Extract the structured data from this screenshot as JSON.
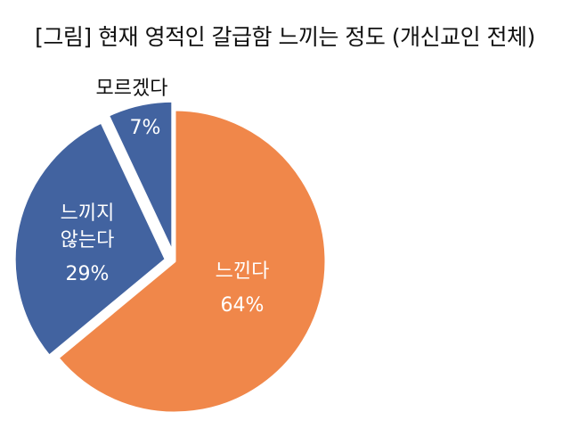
{
  "chart_data": {
    "type": "pie",
    "title": "[그림] 현재 영적인 갈급함 느끼는 정도 (개신교인 전체)",
    "slices": [
      {
        "label_lines": [
          "느낀다"
        ],
        "percent_label": "64%",
        "value": 64,
        "color": "#F0874A",
        "label_color": "#ffffff"
      },
      {
        "label_lines": [
          "느끼지",
          "않는다"
        ],
        "percent_label": "29%",
        "value": 29,
        "color": "#4263A0",
        "label_color": "#ffffff"
      },
      {
        "label_lines": [
          "모르겠다"
        ],
        "percent_label": "7%",
        "value": 7,
        "color": "#4263A0",
        "label_color": "#ffffff"
      }
    ],
    "legend": "none"
  }
}
